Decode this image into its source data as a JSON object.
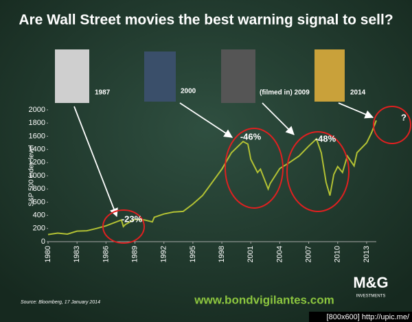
{
  "chart_data": {
    "type": "line",
    "title": "Are Wall Street movies the best warning signal to sell?",
    "y_label": "S&P 500 index level",
    "x": [
      1980,
      1981,
      1982,
      1983,
      1984,
      1985,
      1986,
      1987.6,
      1987.8,
      1988,
      1989,
      1990,
      1990.8,
      1991,
      1992,
      1993,
      1994,
      1995,
      1996,
      1997,
      1998,
      1999,
      2000.2,
      2000.7,
      2001,
      2001.7,
      2002,
      2002.8,
      2003,
      2004,
      2005,
      2006,
      2007,
      2007.8,
      2008.3,
      2008.8,
      2009.2,
      2009.6,
      2010,
      2010.5,
      2011,
      2011.7,
      2012,
      2013,
      2013.5,
      2014
    ],
    "values": [
      108,
      130,
      115,
      160,
      165,
      200,
      240,
      330,
      230,
      260,
      340,
      330,
      300,
      370,
      420,
      450,
      460,
      570,
      700,
      900,
      1100,
      1350,
      1520,
      1480,
      1250,
      1050,
      1100,
      800,
      880,
      1110,
      1200,
      1300,
      1450,
      1560,
      1350,
      900,
      700,
      1020,
      1140,
      1050,
      1300,
      1150,
      1350,
      1500,
      1650,
      1840
    ],
    "color": "#b3c234",
    "xlim": [
      1980,
      2014
    ],
    "ylim": [
      0,
      2000
    ],
    "xticks": [
      1980,
      1983,
      1986,
      1989,
      1992,
      1995,
      1998,
      2001,
      2004,
      2007,
      2010,
      2013
    ],
    "yticks": [
      0,
      200,
      400,
      600,
      800,
      1000,
      1200,
      1400,
      1600,
      1800,
      2000
    ],
    "movie_labels": [
      "1987",
      "2000",
      "(filmed in) 2009",
      "2014"
    ],
    "annotations": [
      "-23%",
      "-46%",
      "-48%",
      "?"
    ],
    "source": "Source: Bloomberg, 17 January 2014",
    "website": "www.bondvigilantes.com",
    "logo": "M&G",
    "logo_sub": "INVESTMENTS",
    "watermark": "[800x600] http://upic.me/"
  }
}
